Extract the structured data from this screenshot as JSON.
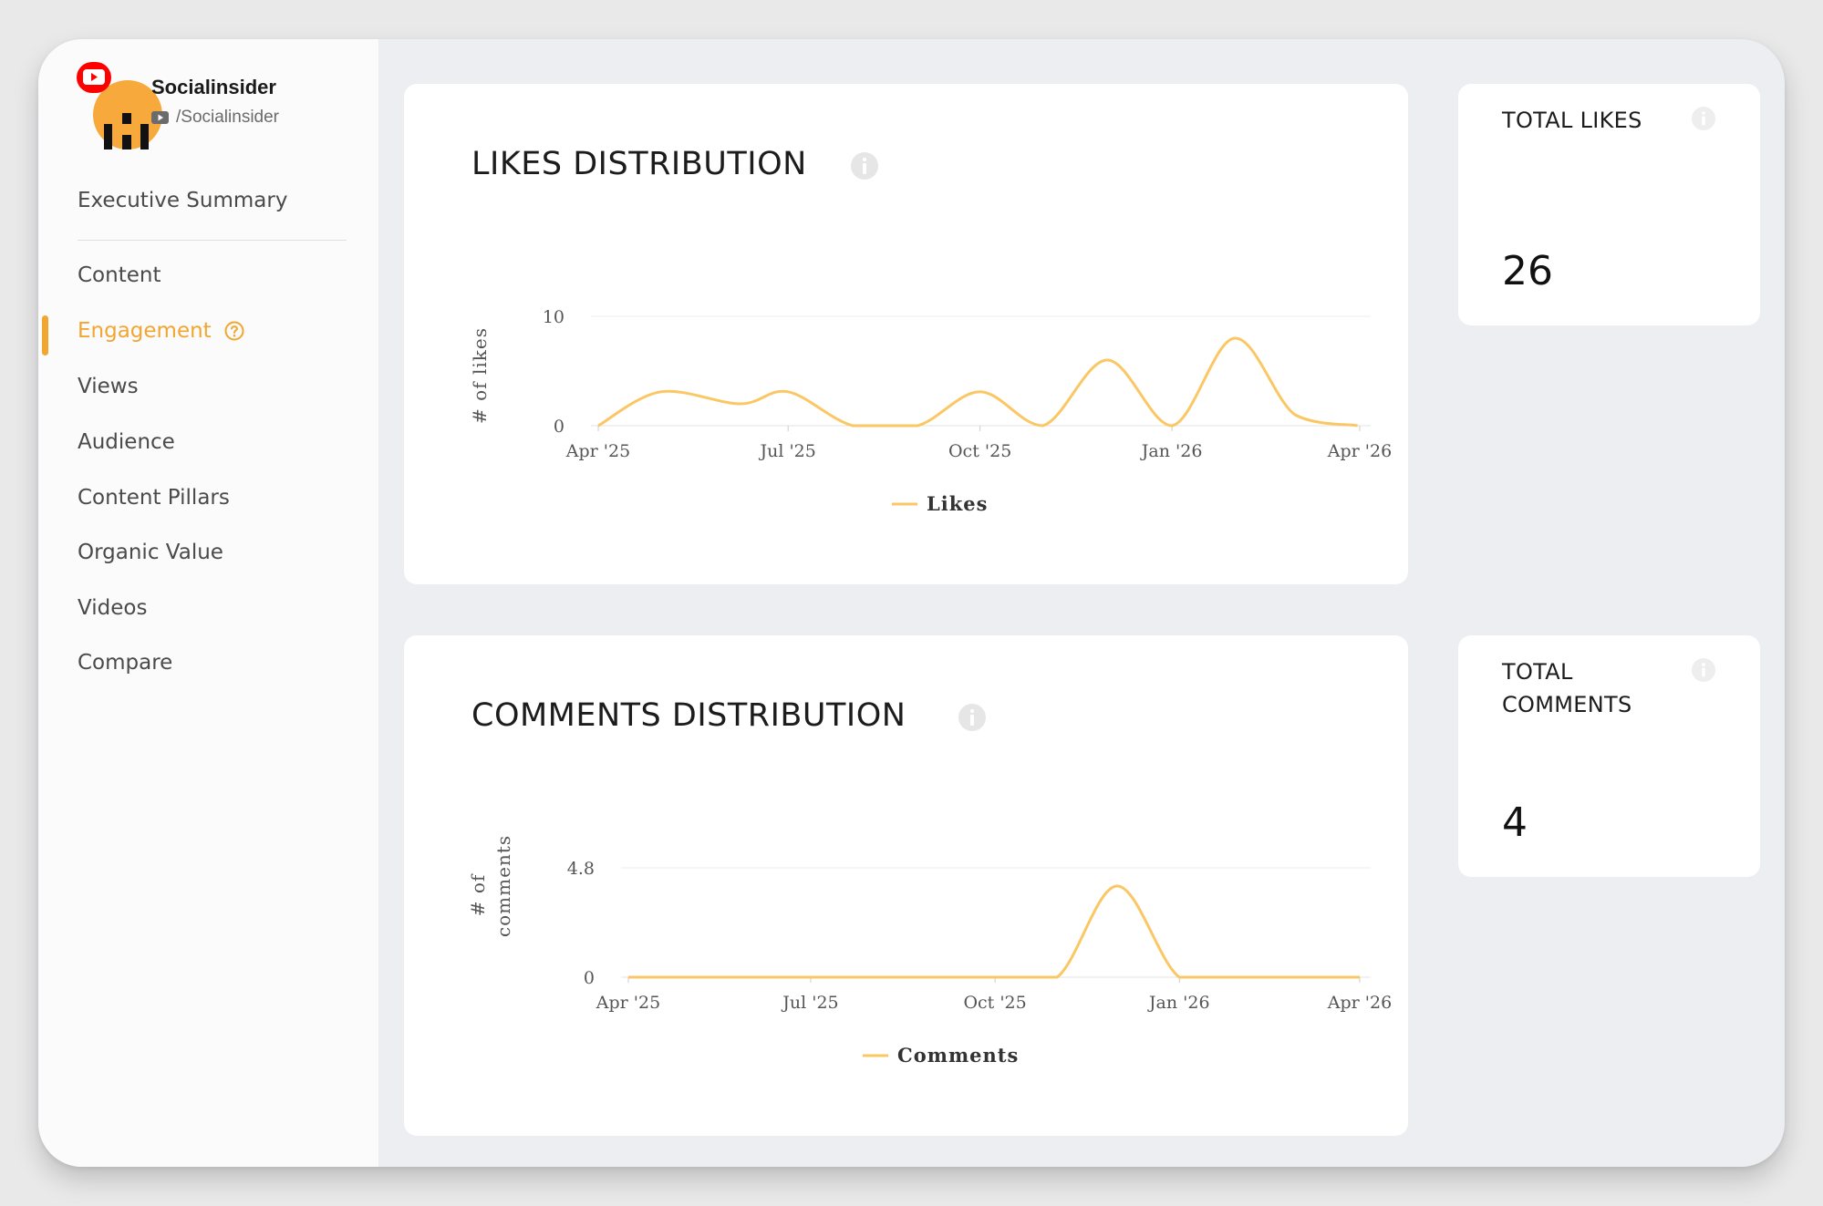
{
  "profile": {
    "name": "Socialinsider",
    "handle": "/Socialinsider",
    "platform_icon": "youtube-icon",
    "avatar_color": "#f7a93b"
  },
  "nav": {
    "summary": "Executive Summary",
    "items": [
      {
        "label": "Content"
      },
      {
        "label": "Engagement",
        "active": true
      },
      {
        "label": "Views"
      },
      {
        "label": "Audience"
      },
      {
        "label": "Content Pillars"
      },
      {
        "label": "Organic Value"
      },
      {
        "label": "Videos"
      },
      {
        "label": "Compare"
      }
    ]
  },
  "colors": {
    "accent": "#f2a632",
    "series_line": "#fbc765"
  },
  "likes_card": {
    "title": "LIKES DISTRIBUTION",
    "total_label": "TOTAL LIKES",
    "total_value": "26"
  },
  "comments_card": {
    "title": "COMMENTS DISTRIBUTION",
    "total_label": "TOTAL COMMENTS",
    "total_value": "4"
  },
  "chart_data": [
    {
      "type": "line",
      "ylabel": "# of likes",
      "xlabel": "",
      "yticks": [
        "0",
        "10"
      ],
      "ylim": [
        0,
        10
      ],
      "xticks": [
        "Apr '25",
        "Jul '25",
        "Oct '25",
        "Jan '26",
        "Apr '26"
      ],
      "series": [
        {
          "name": "Likes",
          "points": [
            [
              "2025-04-01",
              0
            ],
            [
              "2025-05-01",
              3.1
            ],
            [
              "2025-06-08",
              2.0
            ],
            [
              "2025-07-01",
              3.1
            ],
            [
              "2025-08-01",
              0
            ],
            [
              "2025-09-01",
              0
            ],
            [
              "2025-10-01",
              3.1
            ],
            [
              "2025-10-31",
              0
            ],
            [
              "2025-12-01",
              6.0
            ],
            [
              "2026-01-01",
              0
            ],
            [
              "2026-01-31",
              8.0
            ],
            [
              "2026-03-01",
              1.0
            ],
            [
              "2026-03-31",
              0
            ]
          ]
        }
      ]
    },
    {
      "type": "line",
      "ylabel": "# of comments",
      "xlabel": "",
      "yticks": [
        "0",
        "4.8"
      ],
      "ylim": [
        0,
        4.8
      ],
      "xticks": [
        "Apr '25",
        "Jul '25",
        "Oct '25",
        "Jan '26",
        "Apr '26"
      ],
      "series": [
        {
          "name": "Comments",
          "points": [
            [
              "2025-04-01",
              0
            ],
            [
              "2025-05-01",
              0
            ],
            [
              "2025-06-01",
              0
            ],
            [
              "2025-07-01",
              0
            ],
            [
              "2025-08-01",
              0
            ],
            [
              "2025-09-01",
              0
            ],
            [
              "2025-10-01",
              0
            ],
            [
              "2025-11-01",
              0
            ],
            [
              "2025-12-01",
              4.0
            ],
            [
              "2026-01-01",
              0
            ],
            [
              "2026-02-01",
              0
            ],
            [
              "2026-03-01",
              0
            ],
            [
              "2026-04-01",
              0
            ]
          ]
        }
      ]
    }
  ]
}
